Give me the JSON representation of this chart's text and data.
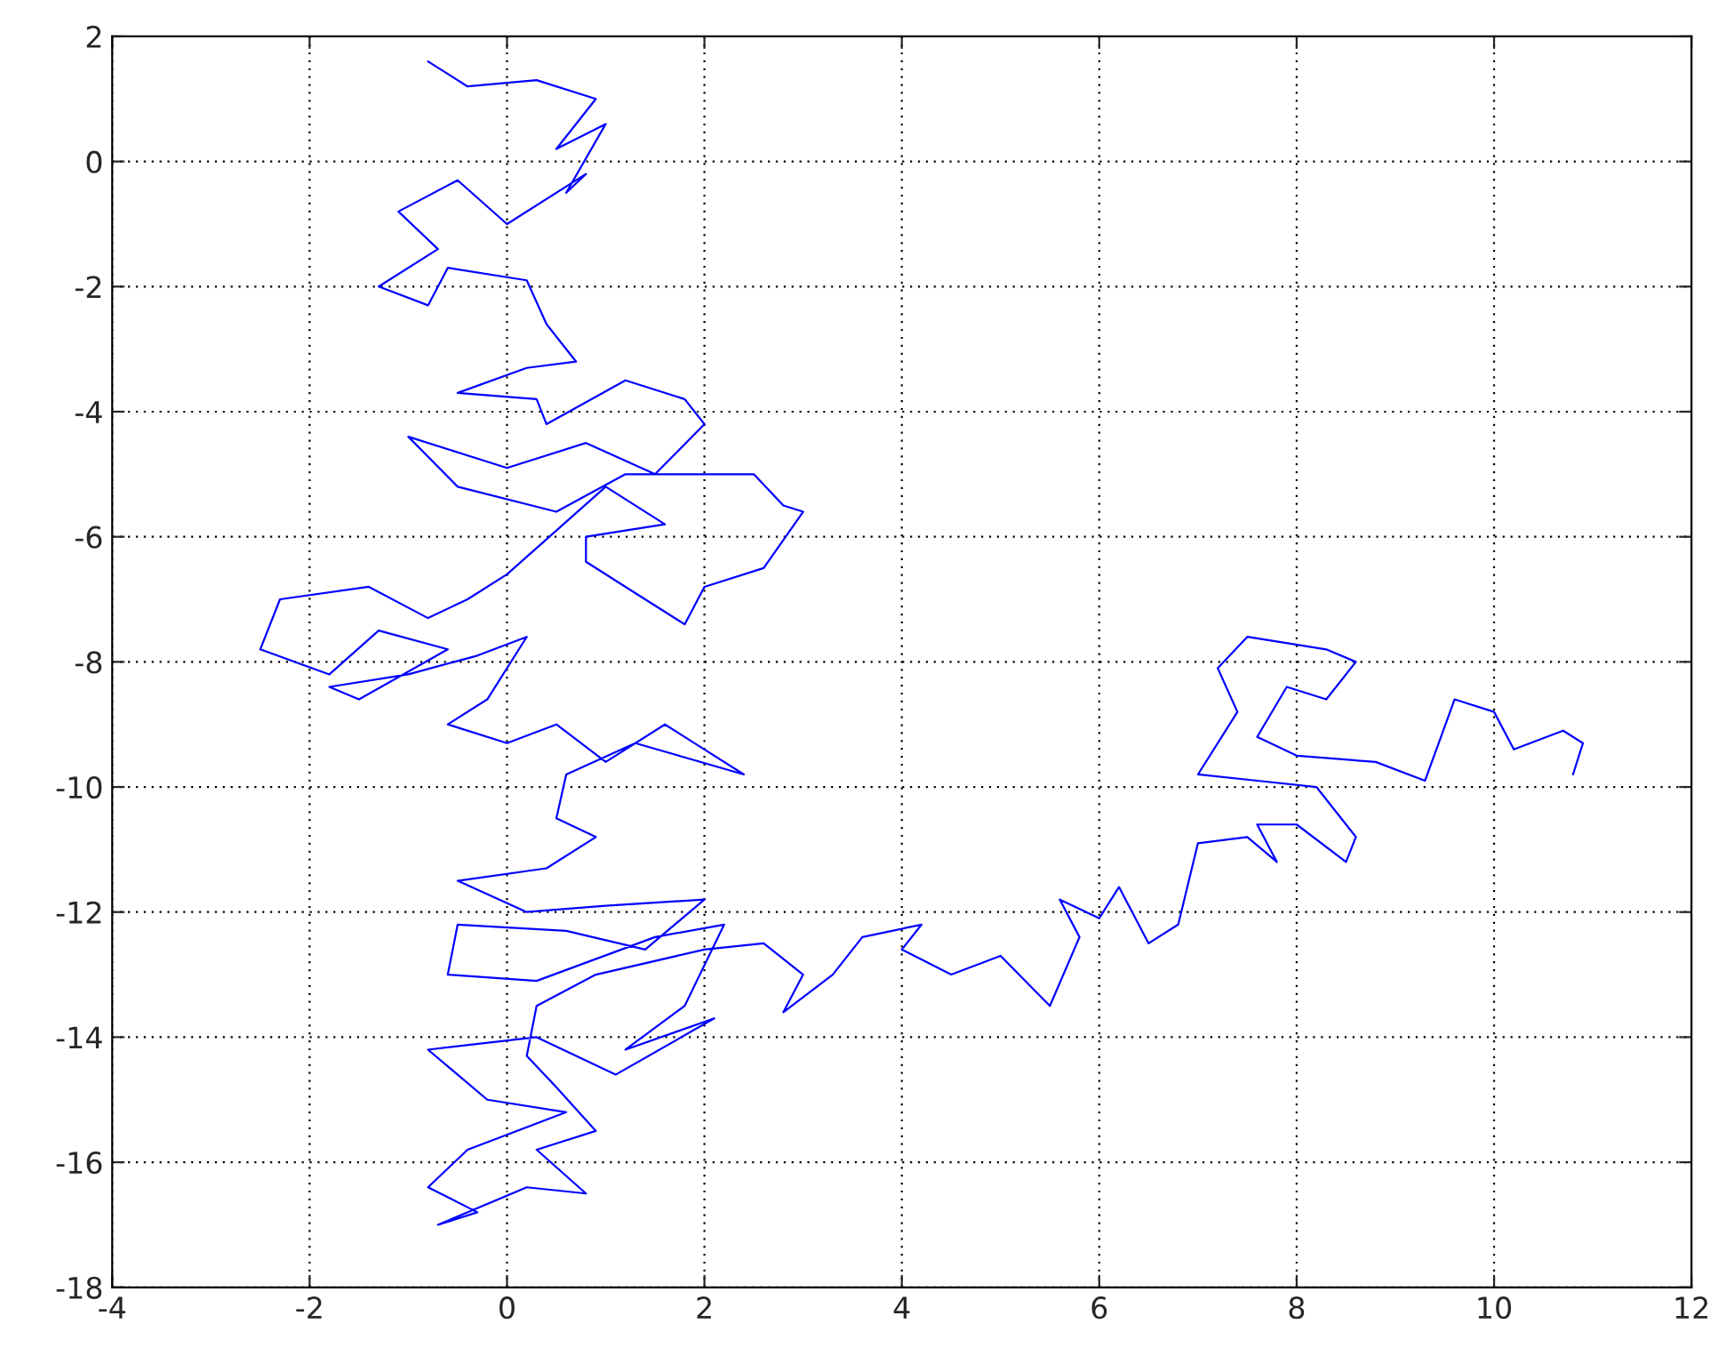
{
  "chart_data": {
    "type": "line",
    "color": "#0000ff",
    "marker": "none",
    "line_style": "solid",
    "grid": true,
    "xlim": [
      -4,
      12
    ],
    "xticks": [
      -4,
      -2,
      0,
      2,
      4,
      6,
      8,
      10,
      12
    ],
    "ylim": [
      -18,
      2
    ],
    "yticks": [
      -18,
      -16,
      -14,
      -12,
      -10,
      -8,
      -6,
      -4,
      -2,
      0,
      2
    ],
    "x": [
      -0.8,
      -0.4,
      0.3,
      0.9,
      0.5,
      1.0,
      0.6,
      0.8,
      0,
      -0.5,
      -1.1,
      -0.7,
      -1.3,
      -0.8,
      -0.6,
      0.2,
      0.4,
      0.7,
      0.2,
      -0.5,
      0.3,
      0.4,
      1.2,
      1.8,
      2.0,
      1.5,
      0.8,
      0,
      -1.0,
      -0.5,
      0.5,
      1.2,
      2.5,
      2.8,
      3.0,
      2.6,
      2.0,
      1.8,
      1.2,
      0.8,
      0.8,
      1.6,
      1.0,
      0.5,
      0,
      -0.4,
      -0.8,
      -1.4,
      -2.3,
      -2.5,
      -1.8,
      -1.3,
      -0.6,
      -1.5,
      -1.8,
      -1.0,
      -0.3,
      0.2,
      -0.2,
      -0.6,
      0,
      0.5,
      1.0,
      1.6,
      2.0,
      2.4,
      1.3,
      0.6,
      0.5,
      0.9,
      0.4,
      -0.5,
      0.2,
      1.0,
      2.0,
      1.4,
      0.6,
      -0.5,
      -0.6,
      0.3,
      1.5,
      2.2,
      1.8,
      1.2,
      2.1,
      1.1,
      0.3,
      -0.8,
      -0.2,
      0.6,
      -0.4,
      -0.8,
      -0.3,
      -0.7,
      0.2,
      0.8,
      0.3,
      0.9,
      0.5,
      0.2,
      0.3,
      0.9,
      2.0,
      2.6,
      3.0,
      2.8,
      3.3,
      3.6,
      4.2,
      4.0,
      4.5,
      5.0,
      5.5,
      5.8,
      5.6,
      6.0,
      6.2,
      6.5,
      6.8,
      7.0,
      7.5,
      7.8,
      7.6,
      8.0,
      8.5,
      8.6,
      8.2,
      7.6,
      7.0,
      7.4,
      7.2,
      7.5,
      8.3,
      8.6,
      8.3,
      7.9,
      7.6,
      8.0,
      8.8,
      9.3,
      9.6,
      10.0,
      10.2,
      10.7,
      10.9,
      10.8
    ],
    "values": [
      1.6,
      1.2,
      1.3,
      1.0,
      0.2,
      0.6,
      -0.5,
      -0.2,
      -1.0,
      -0.3,
      -0.8,
      -1.4,
      -2.0,
      -2.3,
      -1.7,
      -1.9,
      -2.6,
      -3.2,
      -3.3,
      -3.7,
      -3.8,
      -4.2,
      -3.5,
      -3.8,
      -4.2,
      -5.0,
      -4.5,
      -4.9,
      -4.4,
      -5.2,
      -5.6,
      -5.0,
      -5.0,
      -5.5,
      -5.6,
      -6.5,
      -6.8,
      -7.4,
      -6.8,
      -6.4,
      -6.0,
      -5.8,
      -5.2,
      -5.9,
      -6.6,
      -7.0,
      -7.3,
      -6.8,
      -7.0,
      -7.8,
      -8.2,
      -7.5,
      -7.8,
      -8.6,
      -8.4,
      -8.2,
      -7.9,
      -7.6,
      -8.6,
      -9.0,
      -9.3,
      -9.0,
      -9.6,
      -9.0,
      -9.4,
      -9.8,
      -9.3,
      -9.8,
      -10.5,
      -10.8,
      -11.3,
      -11.5,
      -12.0,
      -11.9,
      -11.8,
      -12.6,
      -12.3,
      -12.2,
      -13.0,
      -13.1,
      -12.4,
      -12.2,
      -13.5,
      -14.2,
      -13.7,
      -14.6,
      -14.0,
      -14.2,
      -15.0,
      -15.2,
      -15.8,
      -16.4,
      -16.8,
      -17.0,
      -16.4,
      -16.5,
      -15.8,
      -15.5,
      -14.8,
      -14.3,
      -13.5,
      -13.0,
      -12.6,
      -12.5,
      -13.0,
      -13.6,
      -13.0,
      -12.4,
      -12.2,
      -12.6,
      -13.0,
      -12.7,
      -13.5,
      -12.4,
      -11.8,
      -12.1,
      -11.6,
      -12.5,
      -12.2,
      -10.9,
      -10.8,
      -11.2,
      -10.6,
      -10.6,
      -11.2,
      -10.8,
      -10.0,
      -9.9,
      -9.8,
      -8.8,
      -8.1,
      -7.6,
      -7.8,
      -8.0,
      -8.6,
      -8.4,
      -9.2,
      -9.5,
      -9.6,
      -9.9,
      -8.6,
      -8.8,
      -9.4,
      -9.1,
      -9.3,
      -9.8
    ]
  }
}
